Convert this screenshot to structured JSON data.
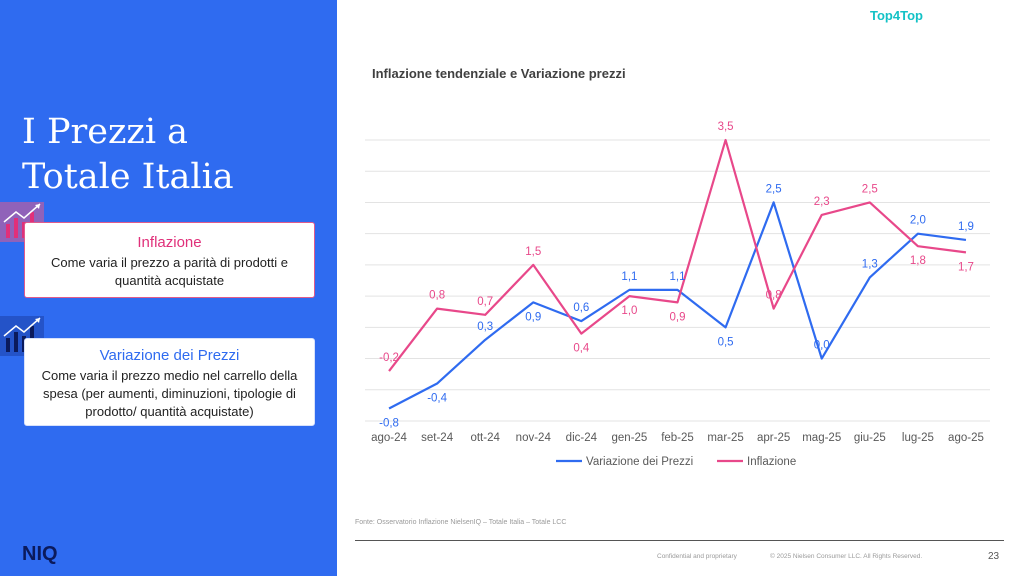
{
  "slide": {
    "title": "I Prezzi a\nTotale Italia",
    "top_tag": "Top4Top",
    "brand": "NIQ",
    "source": "Fonte: Osservatorio Inflazione NielsenIQ – Totale Italia – Totale LCC",
    "confidential": "Confidential and proprietary",
    "copyright": "© 2025 Nielsen Consumer LLC. All Rights Reserved.",
    "page_number": "23"
  },
  "definitions": {
    "inflation": {
      "title": "Inflazione",
      "text": "Come varia il prezzo a parità di prodotti e quantità acquistate"
    },
    "price_change": {
      "title": "Variazione dei Prezzi",
      "text": "Come varia il prezzo medio nel carrello della spesa (per aumenti, diminuzioni, tipologie di prodotto/ quantità acquistate)"
    }
  },
  "colors": {
    "panel": "#2f6bf0",
    "inflation": "#e8488a",
    "price_change": "#2f6bf0"
  },
  "chart_data": {
    "type": "line",
    "title": "Inflazione tendenziale e Variazione prezzi",
    "categories": [
      "ago-24",
      "set-24",
      "ott-24",
      "nov-24",
      "dic-24",
      "gen-25",
      "feb-25",
      "mar-25",
      "apr-25",
      "mag-25",
      "giu-25",
      "lug-25",
      "ago-25"
    ],
    "series": [
      {
        "name": "Variazione dei Prezzi",
        "color": "#2f6bf0",
        "values": [
          -0.8,
          -0.4,
          0.3,
          0.9,
          0.6,
          1.1,
          1.1,
          0.5,
          2.5,
          0.0,
          1.3,
          2.0,
          1.9
        ],
        "labels": [
          "-0,8",
          "-0,4",
          "0,3",
          "0,9",
          "0,6",
          "1,1",
          "1,1",
          "0,5",
          "2,5",
          "0,0",
          "1,3",
          "2,0",
          "1,9"
        ]
      },
      {
        "name": "Inflazione",
        "color": "#e8488a",
        "values": [
          -0.2,
          0.8,
          0.7,
          1.5,
          0.4,
          1.0,
          0.9,
          3.5,
          0.8,
          2.3,
          2.5,
          1.8,
          1.7
        ],
        "labels": [
          "-0,2",
          "0,8",
          "0,7",
          "1,5",
          "0,4",
          "1,0",
          "0,9",
          "3,5",
          "0,8",
          "2,3",
          "2,5",
          "1,8",
          "1,7"
        ]
      }
    ],
    "ylim": [
      -1.0,
      3.5
    ],
    "grid": true,
    "legend": "bottom"
  }
}
